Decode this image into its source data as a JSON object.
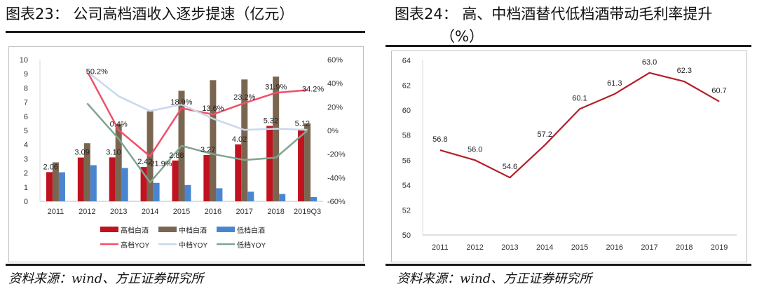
{
  "left": {
    "title": "图表23：  公司高档酒收入逐步提速（亿元）",
    "source": "资料来源：wind、方正证券研究所"
  },
  "right": {
    "title_line1": "图表24：  高、中档酒替代低档酒带动毛利率提升",
    "title_line2": "（%）",
    "source": "资料来源：wind、方正证券研究所"
  },
  "colors": {
    "high_bar": "#c0121f",
    "mid_bar": "#7a6650",
    "low_bar": "#4a86d0",
    "high_yoy": "#f0506a",
    "mid_yoy": "#c8d8ee",
    "low_yoy": "#7fa590",
    "margin_line": "#b41e28"
  },
  "chart_data": [
    {
      "type": "bar",
      "categories": [
        "2011",
        "2012",
        "2013",
        "2014",
        "2015",
        "2016",
        "2017",
        "2018",
        "2019Q3"
      ],
      "series": [
        {
          "name": "高档白酒",
          "axis": "left",
          "values": [
            2.06,
            3.09,
            3.1,
            2.42,
            2.88,
            3.27,
            4.02,
            5.32,
            5.12
          ],
          "labels": [
            "2.06",
            "3.09",
            "3.10",
            "2.42",
            "2.88",
            "3.27",
            "4.02",
            "5.32",
            "5.12"
          ]
        },
        {
          "name": "中档白酒",
          "axis": "left",
          "values": [
            2.75,
            4.1,
            5.45,
            6.35,
            7.8,
            8.55,
            8.6,
            8.8,
            5.5
          ]
        },
        {
          "name": "低档白酒",
          "axis": "left",
          "values": [
            2.05,
            2.55,
            2.35,
            1.3,
            1.15,
            0.92,
            0.68,
            0.52,
            0.3
          ]
        },
        {
          "name": "高档YOY",
          "type": "line",
          "axis": "right",
          "values": [
            null,
            50.2,
            0.4,
            -21.9,
            18.9,
            13.6,
            23.2,
            31.9,
            34.2
          ],
          "labels": [
            null,
            "50.2%",
            "0.4%",
            "-21.9%",
            "18.9%",
            "13.6%",
            "23.2%",
            "31.9%",
            "34.2%"
          ]
        },
        {
          "name": "中档YOY",
          "type": "line",
          "axis": "right",
          "values": [
            null,
            50,
            29,
            16.5,
            22,
            10,
            0.5,
            1.5,
            0.5
          ]
        },
        {
          "name": "低档YOY",
          "type": "line",
          "axis": "right",
          "values": [
            null,
            23,
            -7,
            -44,
            -13,
            -20,
            -25,
            -23,
            0
          ]
        }
      ],
      "yleft": {
        "min": 0,
        "max": 10,
        "ticks": [
          "0",
          "1",
          "2",
          "3",
          "4",
          "5",
          "6",
          "7",
          "8",
          "9",
          "10"
        ]
      },
      "yright": {
        "min": -60,
        "max": 60,
        "ticks": [
          "-60%",
          "-40%",
          "-20%",
          "0%",
          "20%",
          "40%",
          "60%"
        ]
      },
      "legend_position": "bottom"
    },
    {
      "type": "line",
      "categories": [
        "2011",
        "2012",
        "2013",
        "2014",
        "2015",
        "2016",
        "2017",
        "2018",
        "2019"
      ],
      "series": [
        {
          "name": "毛利率",
          "values": [
            56.8,
            56.0,
            54.6,
            57.2,
            60.1,
            61.3,
            63.0,
            62.3,
            60.7
          ],
          "labels": [
            "56.8",
            "56.0",
            "54.6",
            "57.2",
            "60.1",
            "61.3",
            "63.0",
            "62.3",
            "60.7"
          ]
        }
      ],
      "ylim": [
        50,
        64
      ],
      "yticks": [
        "50",
        "52",
        "54",
        "56",
        "58",
        "60",
        "62",
        "64"
      ]
    }
  ]
}
